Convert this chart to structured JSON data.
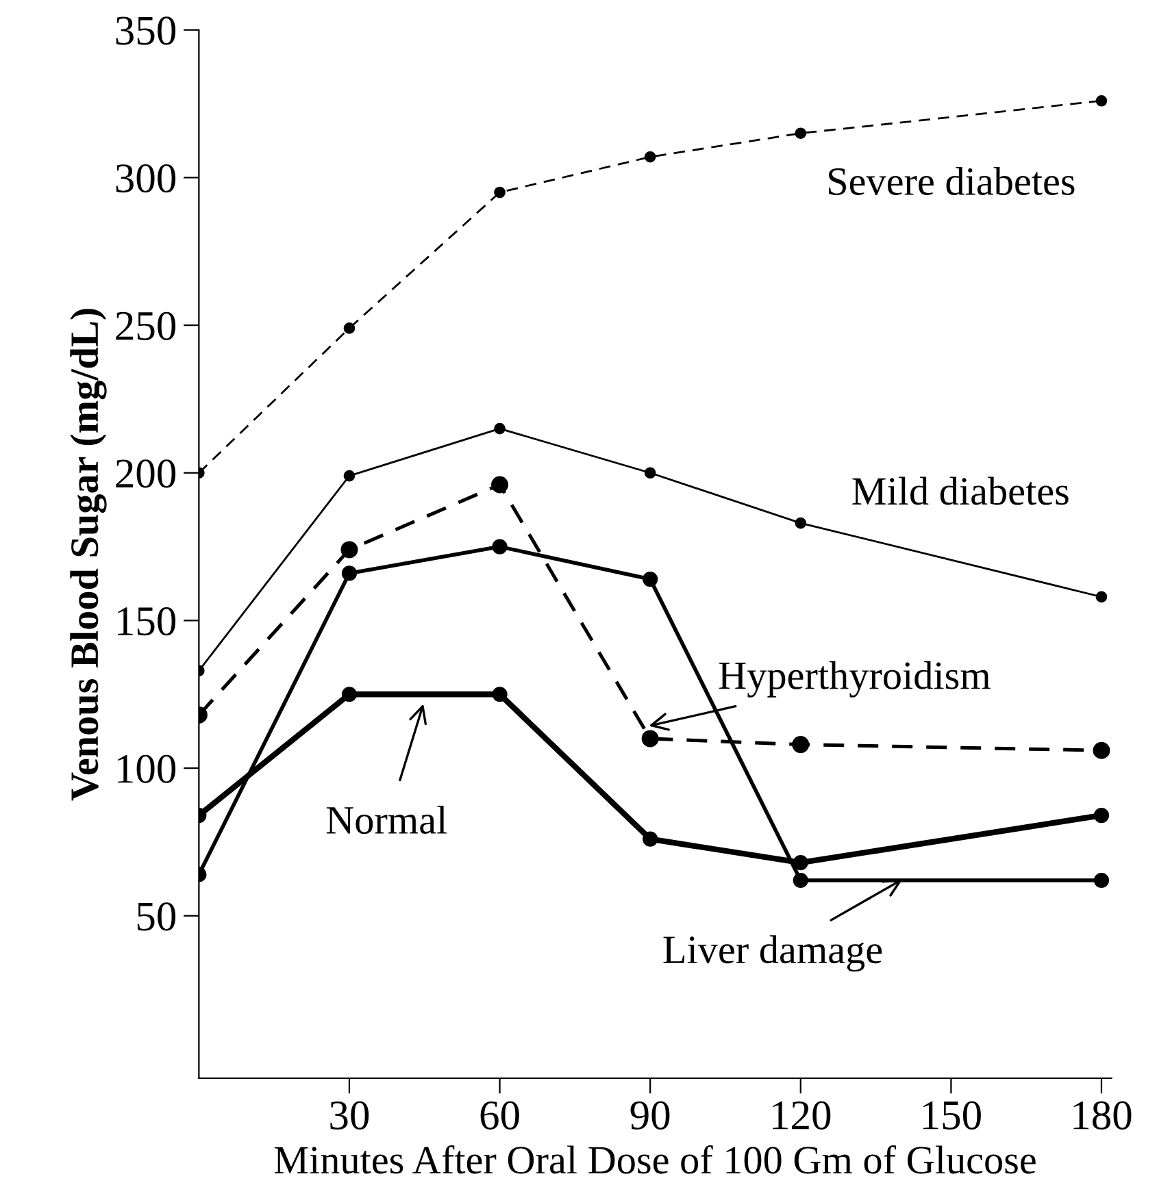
{
  "chart_data": {
    "type": "line",
    "xlabel": "Minutes After Oral Dose of 100 Gm of Glucose",
    "ylabel": "Venous Blood Sugar (mg/dL)",
    "x": [
      0,
      30,
      60,
      90,
      120,
      180
    ],
    "series": [
      {
        "color": "#000000",
        "line_style": "dashed",
        "values": [
          200,
          249,
          295,
          307,
          315,
          326
        ]
      },
      {
        "color": "#000000",
        "line_style": "solid",
        "values": [
          133,
          199,
          215,
          200,
          183,
          158
        ]
      },
      {
        "color": "#000000",
        "line_style": "dashed",
        "values": [
          118,
          174,
          196,
          110,
          108,
          106
        ]
      },
      {
        "color": "#000000",
        "line_style": "solid",
        "values": [
          64,
          166,
          175,
          164,
          62,
          62
        ]
      },
      {
        "color": "#000000",
        "line_style": "solid",
        "values": [
          84,
          125,
          125,
          76,
          68,
          84
        ]
      }
    ],
    "annotations": [
      {
        "text": "Severe diabetes",
        "x": 150,
        "y": 320
      },
      {
        "text": "Mild diabetes",
        "x": 150,
        "y": 170
      },
      {
        "text": "Hyperthyroidism",
        "x": 89,
        "y": 114
      },
      {
        "text": "Normal",
        "x": 45,
        "y": 123
      },
      {
        "text": "Liver damage",
        "x": 141,
        "y": 63
      }
    ],
    "xlim": [
      0,
      182
    ],
    "ylim": [
      -5,
      350
    ],
    "xticks": [
      30,
      60,
      90,
      120,
      150,
      180
    ],
    "yticks": [
      50,
      100,
      150,
      200,
      250,
      300,
      350
    ],
    "marker": "circle",
    "grid": false,
    "legend": false
  }
}
